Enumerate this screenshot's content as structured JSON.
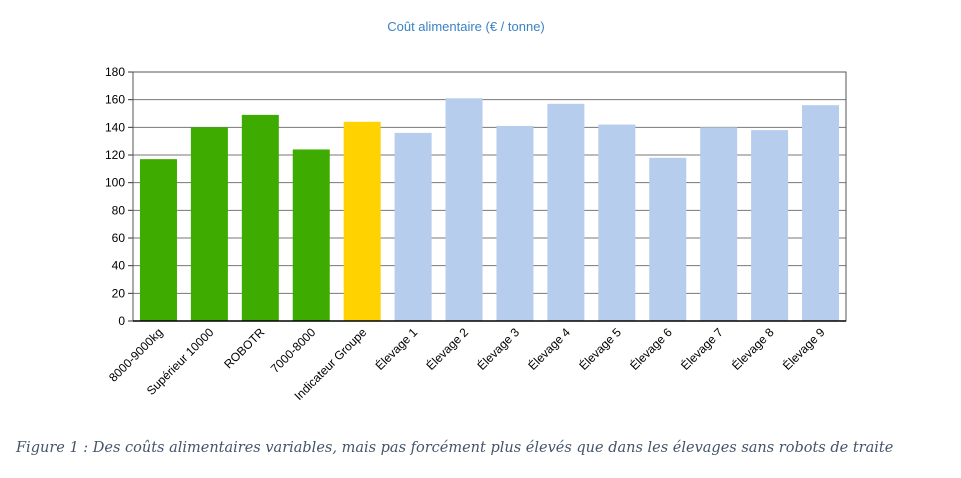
{
  "chart_data": {
    "type": "bar",
    "title": "Coût alimentaire (€ / tonne)",
    "xlabel": "",
    "ylabel": "",
    "ylim": [
      0,
      180
    ],
    "yticks": [
      0,
      20,
      40,
      60,
      80,
      100,
      120,
      140,
      160,
      180
    ],
    "grid": true,
    "categories": [
      "8000-9000kg",
      "Supérieur 10000",
      "ROBOTR",
      "7000-8000",
      "Indicateur Groupe",
      "Élevage 1",
      "Élevage 2",
      "Élevage 3",
      "Élevage 4",
      "Élevage 5",
      "Élevage 6",
      "Élevage 7",
      "Élevage 8",
      "Élevage 9"
    ],
    "values": [
      117,
      140,
      149,
      124,
      144,
      136,
      161,
      141,
      157,
      142,
      118,
      140,
      138,
      156
    ],
    "bar_colors": [
      "#3dab00",
      "#3dab00",
      "#3dab00",
      "#3dab00",
      "#ffd200",
      "#b6cdee",
      "#b6cdee",
      "#b6cdee",
      "#b6cdee",
      "#b6cdee",
      "#b6cdee",
      "#b6cdee",
      "#b6cdee",
      "#b6cdee"
    ],
    "title_color": "#3b82c4"
  },
  "caption": "Figure 1 : Des coûts alimentaires variables, mais pas forcément plus élevés que dans les élevages sans robots de traite"
}
